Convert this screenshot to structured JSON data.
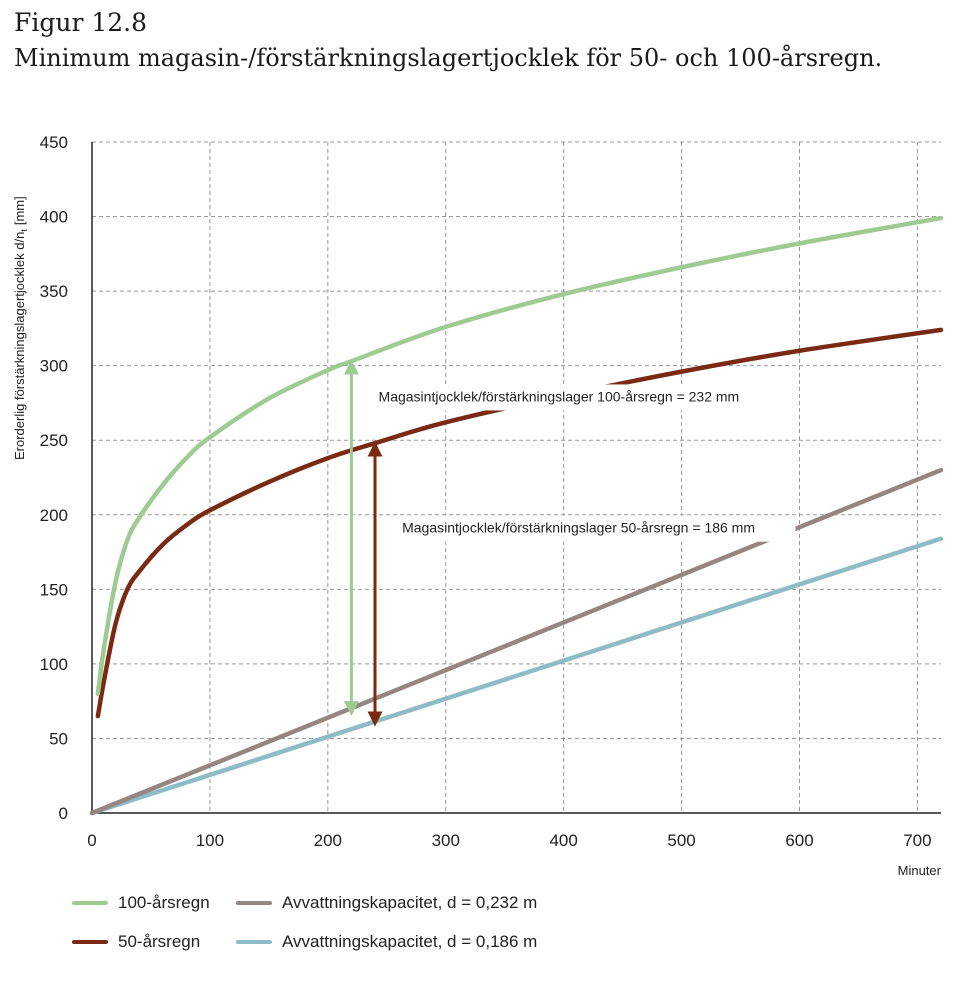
{
  "figure": {
    "label": "Figur 12.8",
    "title": "Minimum magasin-/förstärkningslagertjocklek för 50- och 100-årsregn."
  },
  "colors": {
    "rain100": "#9ecb92",
    "rain50": "#7a2a12",
    "cap232": "#958683",
    "cap186": "#8ebcc6",
    "grid": "#999999"
  },
  "chart_data": {
    "type": "line",
    "xlabel": "Minuter",
    "ylabel": "Erorderlig förstärkningslagertjocklek d/n",
    "ylabel_sub": "t",
    "ylabel_unit": "[mm]",
    "xlim": [
      0,
      720
    ],
    "ylim": [
      0,
      450
    ],
    "x_ticks": [
      "0",
      "100",
      "200",
      "300",
      "400",
      "500",
      "600",
      "700"
    ],
    "y_ticks": [
      "0",
      "50",
      "100",
      "150",
      "200",
      "250",
      "300",
      "350",
      "400",
      "450"
    ],
    "grid": true,
    "series": [
      {
        "name": "100-årsregn",
        "color": "#9ecb92",
        "x": [
          5,
          10,
          20,
          30,
          40,
          60,
          80,
          100,
          150,
          200,
          220,
          300,
          400,
          500,
          600,
          720
        ],
        "y": [
          80,
          110,
          155,
          183,
          198,
          220,
          238,
          252,
          278,
          297,
          303,
          326,
          348,
          366,
          382,
          399
        ]
      },
      {
        "name": "50-årsregn",
        "color": "#7a2a12",
        "x": [
          5,
          10,
          20,
          30,
          40,
          60,
          80,
          100,
          150,
          200,
          240,
          300,
          400,
          500,
          600,
          720
        ],
        "y": [
          65,
          88,
          127,
          150,
          162,
          180,
          193,
          203,
          222,
          238,
          248,
          262,
          280,
          296,
          310,
          324
        ]
      },
      {
        "name": "Avvattningskapacitet, d = 0,232 m",
        "color": "#958683",
        "x": [
          0,
          720
        ],
        "y": [
          0,
          230
        ]
      },
      {
        "name": "Avvattningskapacitet, d = 0,186 m",
        "color": "#8ebcc6",
        "x": [
          0,
          720
        ],
        "y": [
          0,
          184
        ]
      }
    ],
    "annotations": [
      {
        "text": "Magasintjocklek/förstärkningslager 100-årsregn = 232 mm",
        "arrow_x": 220,
        "arrow_y": [
          68,
          301
        ],
        "color": "#9ecb92",
        "label_at": [
          243,
          276
        ]
      },
      {
        "text": "Magasintjocklek/förstärkningslager 50-årsregn = 186 mm",
        "arrow_x": 240,
        "arrow_y": [
          61,
          246
        ],
        "color": "#7a2a12",
        "label_at": [
          263,
          188
        ]
      }
    ]
  },
  "legend": [
    {
      "label": "100-årsregn",
      "color": "#9ecb92"
    },
    {
      "label": "Avvattningskapacitet, d = 0,232 m",
      "color": "#958683"
    },
    {
      "label": "50-årsregn",
      "color": "#7a2a12"
    },
    {
      "label": "Avvattningskapacitet, d = 0,186 m",
      "color": "#8ebcc6"
    }
  ]
}
